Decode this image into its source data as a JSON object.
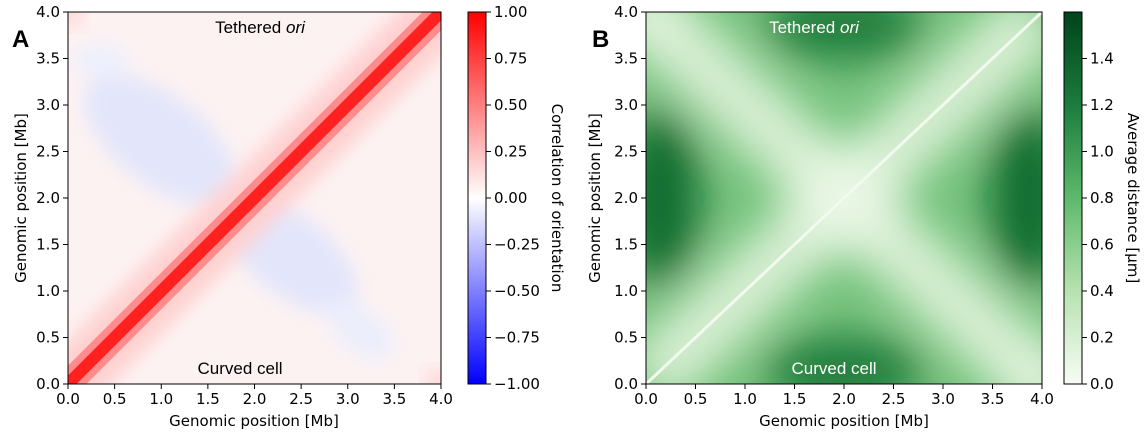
{
  "chart_data": [
    {
      "type": "heatmap",
      "panel_label": "A",
      "xlabel": "Genomic position [Mb]",
      "ylabel": "Genomic position [Mb]",
      "xlim": [
        0,
        4
      ],
      "ylim": [
        0,
        4
      ],
      "xticks": [
        "0.0",
        "0.5",
        "1.0",
        "1.5",
        "2.0",
        "2.5",
        "3.0",
        "3.5",
        "4.0"
      ],
      "yticks": [
        "0.0",
        "0.5",
        "1.0",
        "1.5",
        "2.0",
        "2.5",
        "3.0",
        "3.5",
        "4.0"
      ],
      "colorbar": {
        "label": "Correlation of orientation",
        "colormap": "bwr",
        "range": [
          -1,
          1
        ],
        "ticks": [
          "1.00",
          "0.75",
          "0.50",
          "0.25",
          "0.00",
          "−0.25",
          "−0.50",
          "−0.75",
          "−1.00"
        ]
      },
      "annotations": {
        "top": {
          "text": "Tethered ",
          "italic": "ori"
        },
        "bottom": {
          "text": "Curved cell"
        }
      },
      "description_values": {
        "diagonal": 1.0,
        "off_diagonal_bands": -0.1
      }
    },
    {
      "type": "heatmap",
      "panel_label": "B",
      "xlabel": "Genomic position [Mb]",
      "ylabel": "Genomic position [Mb]",
      "xlim": [
        0,
        4
      ],
      "ylim": [
        0,
        4
      ],
      "xticks": [
        "0.0",
        "0.5",
        "1.0",
        "1.5",
        "2.0",
        "2.5",
        "3.0",
        "3.5",
        "4.0"
      ],
      "yticks": [
        "0.0",
        "0.5",
        "1.0",
        "1.5",
        "2.0",
        "2.5",
        "3.0",
        "3.5",
        "4.0"
      ],
      "colorbar": {
        "label": "Average distance [μm]",
        "colormap": "Greens",
        "range": [
          0,
          1.6
        ],
        "ticks": [
          "1.4",
          "1.2",
          "1.0",
          "0.8",
          "0.6",
          "0.4",
          "0.2",
          "0.0"
        ]
      },
      "annotations": {
        "top": {
          "text": "Tethered ",
          "italic": "ori"
        },
        "bottom": {
          "text": "Curved cell"
        }
      },
      "description_values": {
        "diagonal": 0.0,
        "max": 1.55
      }
    }
  ]
}
